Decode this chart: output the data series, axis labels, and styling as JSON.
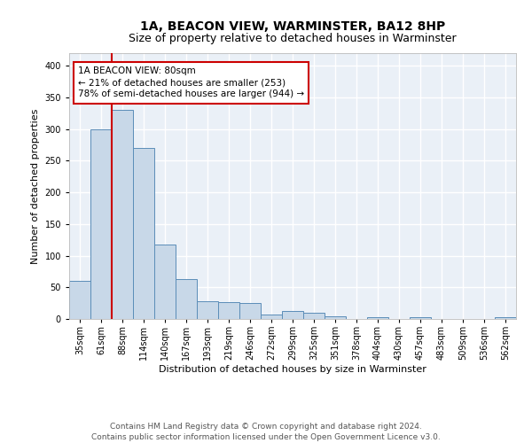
{
  "title": "1A, BEACON VIEW, WARMINSTER, BA12 8HP",
  "subtitle": "Size of property relative to detached houses in Warminster",
  "xlabel": "Distribution of detached houses by size in Warminster",
  "ylabel": "Number of detached properties",
  "categories": [
    "35sqm",
    "61sqm",
    "88sqm",
    "114sqm",
    "140sqm",
    "167sqm",
    "193sqm",
    "219sqm",
    "246sqm",
    "272sqm",
    "299sqm",
    "325sqm",
    "351sqm",
    "378sqm",
    "404sqm",
    "430sqm",
    "457sqm",
    "483sqm",
    "509sqm",
    "536sqm",
    "562sqm"
  ],
  "values": [
    60,
    300,
    330,
    270,
    118,
    63,
    28,
    27,
    25,
    7,
    12,
    10,
    4,
    0,
    3,
    0,
    3,
    0,
    0,
    0,
    3
  ],
  "bar_color": "#c8d8e8",
  "bar_edge_color": "#5b8db8",
  "highlight_line_color": "#cc0000",
  "highlight_bar_index": 1,
  "ylim": [
    0,
    420
  ],
  "yticks": [
    0,
    50,
    100,
    150,
    200,
    250,
    300,
    350,
    400
  ],
  "annotation_text": "1A BEACON VIEW: 80sqm\n← 21% of detached houses are smaller (253)\n78% of semi-detached houses are larger (944) →",
  "annotation_box_facecolor": "#ffffff",
  "annotation_box_edgecolor": "#cc0000",
  "background_color": "#eaf0f7",
  "grid_color": "#ffffff",
  "title_fontsize": 10,
  "subtitle_fontsize": 9,
  "axis_label_fontsize": 8,
  "tick_fontsize": 7,
  "annotation_fontsize": 7.5,
  "footer_fontsize": 6.5,
  "footer": "Contains HM Land Registry data © Crown copyright and database right 2024.\nContains public sector information licensed under the Open Government Licence v3.0."
}
